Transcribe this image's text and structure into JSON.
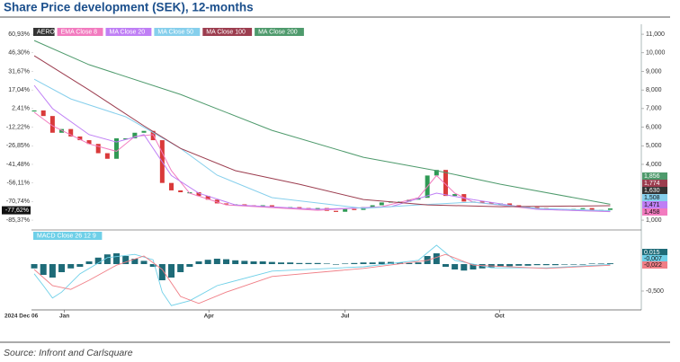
{
  "header": {
    "title": "Share Price development (SEK), 12-months"
  },
  "footer": {
    "source": "Source: Infront and Carlsquare"
  },
  "chart_data": [
    {
      "type": "candlestick",
      "x": [
        0,
        1,
        2,
        3,
        4,
        5,
        6,
        7,
        8,
        9,
        10,
        11,
        12,
        13,
        14,
        15,
        16,
        17,
        18,
        19,
        20,
        21,
        22,
        23,
        24,
        25,
        26,
        27,
        28,
        29,
        30,
        31,
        32,
        33,
        34,
        35,
        36,
        37,
        38,
        39,
        40,
        41,
        42,
        43,
        44,
        45,
        46,
        47,
        48,
        49,
        50,
        51,
        52,
        53,
        54,
        55,
        56,
        57,
        58,
        59,
        60,
        61,
        62,
        63
      ],
      "xlim": [
        -0.3,
        66.4
      ],
      "x_start_label": "2024 Dec 06",
      "xticks": [
        {
          "value": 3.3,
          "label": "Jan"
        },
        {
          "value": 19.1,
          "label": "Apr"
        },
        {
          "value": 34,
          "label": "Jul"
        },
        {
          "value": 50.9,
          "label": "Oct"
        }
      ],
      "ylim": [
        0.52,
        11.39
      ],
      "yticks": [
        {
          "value": 1,
          "label": "1,000"
        },
        {
          "value": 4,
          "label": "4,000"
        },
        {
          "value": 5,
          "label": "5,000"
        },
        {
          "value": 6,
          "label": "6,000"
        },
        {
          "value": 7,
          "label": "7,000"
        },
        {
          "value": 8,
          "label": "8,000"
        },
        {
          "value": 9,
          "label": "9,000"
        },
        {
          "value": 10,
          "label": "10,000"
        },
        {
          "value": 11,
          "label": "11,000"
        }
      ],
      "y2lim": [
        -92.39,
        66.64
      ],
      "y2ticks": [
        {
          "value": 60.93,
          "label": "60,93%"
        },
        {
          "value": 46.3,
          "label": "46,30%"
        },
        {
          "value": 31.67,
          "label": "31,67%"
        },
        {
          "value": 17.04,
          "label": "17,04%"
        },
        {
          "value": 2.41,
          "label": "2,41%"
        },
        {
          "value": -12.22,
          "label": "-12,22%"
        },
        {
          "value": -26.85,
          "label": "-26,85%"
        },
        {
          "value": -41.48,
          "label": "-41,48%"
        },
        {
          "value": -56.11,
          "label": "-56,11%"
        },
        {
          "value": -70.74,
          "label": "-70,74%"
        },
        {
          "value": -85.37,
          "label": "-85,37%"
        }
      ],
      "current_change": {
        "value": -77.62,
        "label": "-77,62%"
      },
      "series": [
        {
          "name": "AERO",
          "color": "#333333",
          "up_color": "#2f9a55",
          "down_color": "#d93a3a",
          "values": [
            6.9,
            6.6,
            5.7,
            5.9,
            5.5,
            5.3,
            5.1,
            4.6,
            4.3,
            5.4,
            5.4,
            5.7,
            5.8,
            5.3,
            3.0,
            2.6,
            2.5,
            2.5,
            2.3,
            2.1,
            1.9,
            1.85,
            1.85,
            1.8,
            1.75,
            1.8,
            1.7,
            1.65,
            1.7,
            1.65,
            1.6,
            1.65,
            1.5,
            1.45,
            1.6,
            1.55,
            1.7,
            1.8,
            1.95,
            2.0,
            2.0,
            2.1,
            2.2,
            3.4,
            3.7,
            2.3,
            2.4,
            2.0,
            2.0,
            1.95,
            1.9,
            1.9,
            1.8,
            1.75,
            1.7,
            1.65,
            1.6,
            1.6,
            1.55,
            1.6,
            1.65,
            1.55,
            1.55,
            1.63
          ],
          "value_labels": [
            null,
            null,
            null,
            null,
            null,
            null,
            null,
            null,
            null,
            null,
            null,
            null,
            null,
            null,
            null,
            null,
            null,
            null,
            null,
            null,
            null,
            null,
            null,
            null,
            null,
            null,
            null,
            null,
            null,
            null,
            null,
            null,
            null,
            null,
            null,
            null,
            null,
            null,
            null,
            null,
            null,
            null,
            null,
            null,
            null,
            null,
            null,
            null,
            null,
            null,
            null,
            null,
            null,
            null,
            null,
            null,
            null,
            null,
            null,
            null,
            null,
            null,
            null,
            "1,630"
          ]
        },
        {
          "name": "EMA Close 8",
          "color": "#f27bbf",
          "x": [
            0,
            2,
            6,
            9,
            11,
            13,
            15,
            17,
            21,
            31,
            38,
            42,
            44,
            46,
            48,
            55,
            63
          ],
          "values": [
            6.8,
            6.07,
            5.1,
            4.7,
            5.5,
            5.6,
            3.66,
            2.45,
            1.82,
            1.53,
            1.72,
            2.2,
            3.4,
            2.45,
            1.97,
            1.58,
            1.458
          ],
          "value_labels": [
            null,
            null,
            null,
            null,
            null,
            null,
            null,
            null,
            null,
            null,
            null,
            null,
            null,
            null,
            null,
            null,
            "1,458"
          ]
        },
        {
          "name": "MA Close 20",
          "color": "#bf7ff5",
          "x": [
            0,
            2,
            6,
            9,
            12,
            15,
            18,
            22,
            31,
            39,
            44,
            48,
            55,
            63
          ],
          "values": [
            8.25,
            7.0,
            5.6,
            5.2,
            5.6,
            3.4,
            2.45,
            1.82,
            1.58,
            1.72,
            2.45,
            2.1,
            1.58,
            1.471
          ],
          "value_labels": [
            null,
            null,
            null,
            null,
            null,
            null,
            null,
            null,
            null,
            null,
            null,
            null,
            null,
            "1,471"
          ]
        },
        {
          "name": "MA Close 50",
          "color": "#86cfec",
          "x": [
            0,
            4,
            10,
            16,
            20,
            26,
            36,
            42,
            48,
            55,
            63
          ],
          "values": [
            8.58,
            7.52,
            6.56,
            4.86,
            3.42,
            2.21,
            1.63,
            1.82,
            1.97,
            1.63,
            1.508
          ],
          "value_labels": [
            null,
            null,
            null,
            null,
            null,
            null,
            null,
            null,
            null,
            null,
            "1,508"
          ]
        },
        {
          "name": "MA Close 100",
          "color": "#9c3d4f",
          "x": [
            0,
            6,
            12,
            16,
            22,
            29,
            36,
            43,
            51,
            63
          ],
          "values": [
            9.84,
            8.0,
            6.07,
            4.86,
            3.66,
            2.93,
            2.11,
            1.82,
            1.72,
            1.774
          ],
          "value_labels": [
            null,
            null,
            null,
            null,
            null,
            null,
            null,
            null,
            null,
            "1,774"
          ]
        },
        {
          "name": "MA Close 200",
          "color": "#4e9a6c",
          "x": [
            0,
            6,
            16,
            26,
            36,
            44,
            51,
            59,
            63
          ],
          "values": [
            10.66,
            9.36,
            7.76,
            5.83,
            4.38,
            3.66,
            2.93,
            2.21,
            1.856
          ],
          "value_labels": [
            null,
            null,
            null,
            null,
            null,
            null,
            null,
            null,
            "1,856"
          ]
        }
      ]
    },
    {
      "type": "macd",
      "title": "MACD  Close 26 12 9",
      "ylim": [
        -0.85,
        0.6
      ],
      "yticks": [
        {
          "value": -0.5,
          "label": "-0,500"
        }
      ],
      "series": [
        {
          "type": "histogram",
          "color": "#1e6b78",
          "values": [
            -0.08,
            -0.2,
            -0.25,
            -0.15,
            -0.08,
            -0.05,
            0.05,
            0.12,
            0.18,
            0.2,
            0.15,
            0.1,
            0.06,
            -0.05,
            -0.3,
            -0.25,
            -0.15,
            -0.05,
            0.05,
            0.08,
            0.1,
            0.09,
            0.07,
            0.06,
            0.05,
            0.05,
            0.04,
            0.03,
            0.03,
            0.02,
            0.02,
            0.02,
            0.01,
            0.0,
            0.01,
            0.02,
            0.03,
            0.03,
            0.04,
            0.04,
            0.03,
            0.02,
            0.03,
            0.15,
            0.2,
            -0.05,
            -0.1,
            -0.12,
            -0.1,
            -0.08,
            -0.06,
            -0.05,
            -0.04,
            -0.03,
            -0.03,
            -0.02,
            -0.02,
            -0.02,
            -0.01,
            -0.01,
            0.0,
            0.01,
            0.01,
            0.015
          ],
          "value_labels": [
            null,
            null,
            null,
            null,
            null,
            null,
            null,
            null,
            null,
            null,
            null,
            null,
            null,
            null,
            null,
            null,
            null,
            null,
            null,
            null,
            null,
            null,
            null,
            null,
            null,
            null,
            null,
            null,
            null,
            null,
            null,
            null,
            null,
            null,
            null,
            null,
            null,
            null,
            null,
            null,
            null,
            null,
            null,
            null,
            null,
            null,
            null,
            null,
            null,
            null,
            null,
            null,
            null,
            null,
            null,
            null,
            null,
            null,
            null,
            null,
            null,
            null,
            null,
            "0,015"
          ]
        },
        {
          "type": "line",
          "color": "#6fd0e8",
          "x": [
            0,
            1,
            2,
            3,
            5,
            8,
            11,
            13,
            14,
            15,
            17,
            20,
            26,
            36,
            42,
            44,
            46,
            50,
            56,
            63
          ],
          "values": [
            -0.18,
            -0.4,
            -0.63,
            -0.52,
            -0.18,
            0.12,
            0.18,
            0.08,
            -0.52,
            -0.77,
            -0.68,
            -0.4,
            -0.13,
            -0.05,
            0.07,
            0.35,
            0.07,
            -0.07,
            -0.07,
            -0.007
          ],
          "value_labels": [
            null,
            null,
            null,
            null,
            null,
            null,
            null,
            null,
            null,
            null,
            null,
            null,
            null,
            null,
            null,
            null,
            null,
            null,
            null,
            "-0,007"
          ]
        },
        {
          "type": "line",
          "color": "#f07e86",
          "x": [
            0,
            2,
            4,
            6,
            9,
            12,
            14,
            16,
            18,
            21,
            26,
            36,
            43,
            45,
            48,
            56,
            63
          ],
          "values": [
            -0.1,
            -0.4,
            -0.47,
            -0.3,
            -0.02,
            0.15,
            -0.1,
            -0.6,
            -0.73,
            -0.52,
            -0.23,
            -0.08,
            0.07,
            0.18,
            -0.02,
            -0.08,
            -0.022
          ],
          "value_labels": [
            null,
            null,
            null,
            null,
            null,
            null,
            null,
            null,
            null,
            null,
            null,
            null,
            null,
            null,
            null,
            null,
            "-0,022"
          ]
        }
      ]
    }
  ]
}
